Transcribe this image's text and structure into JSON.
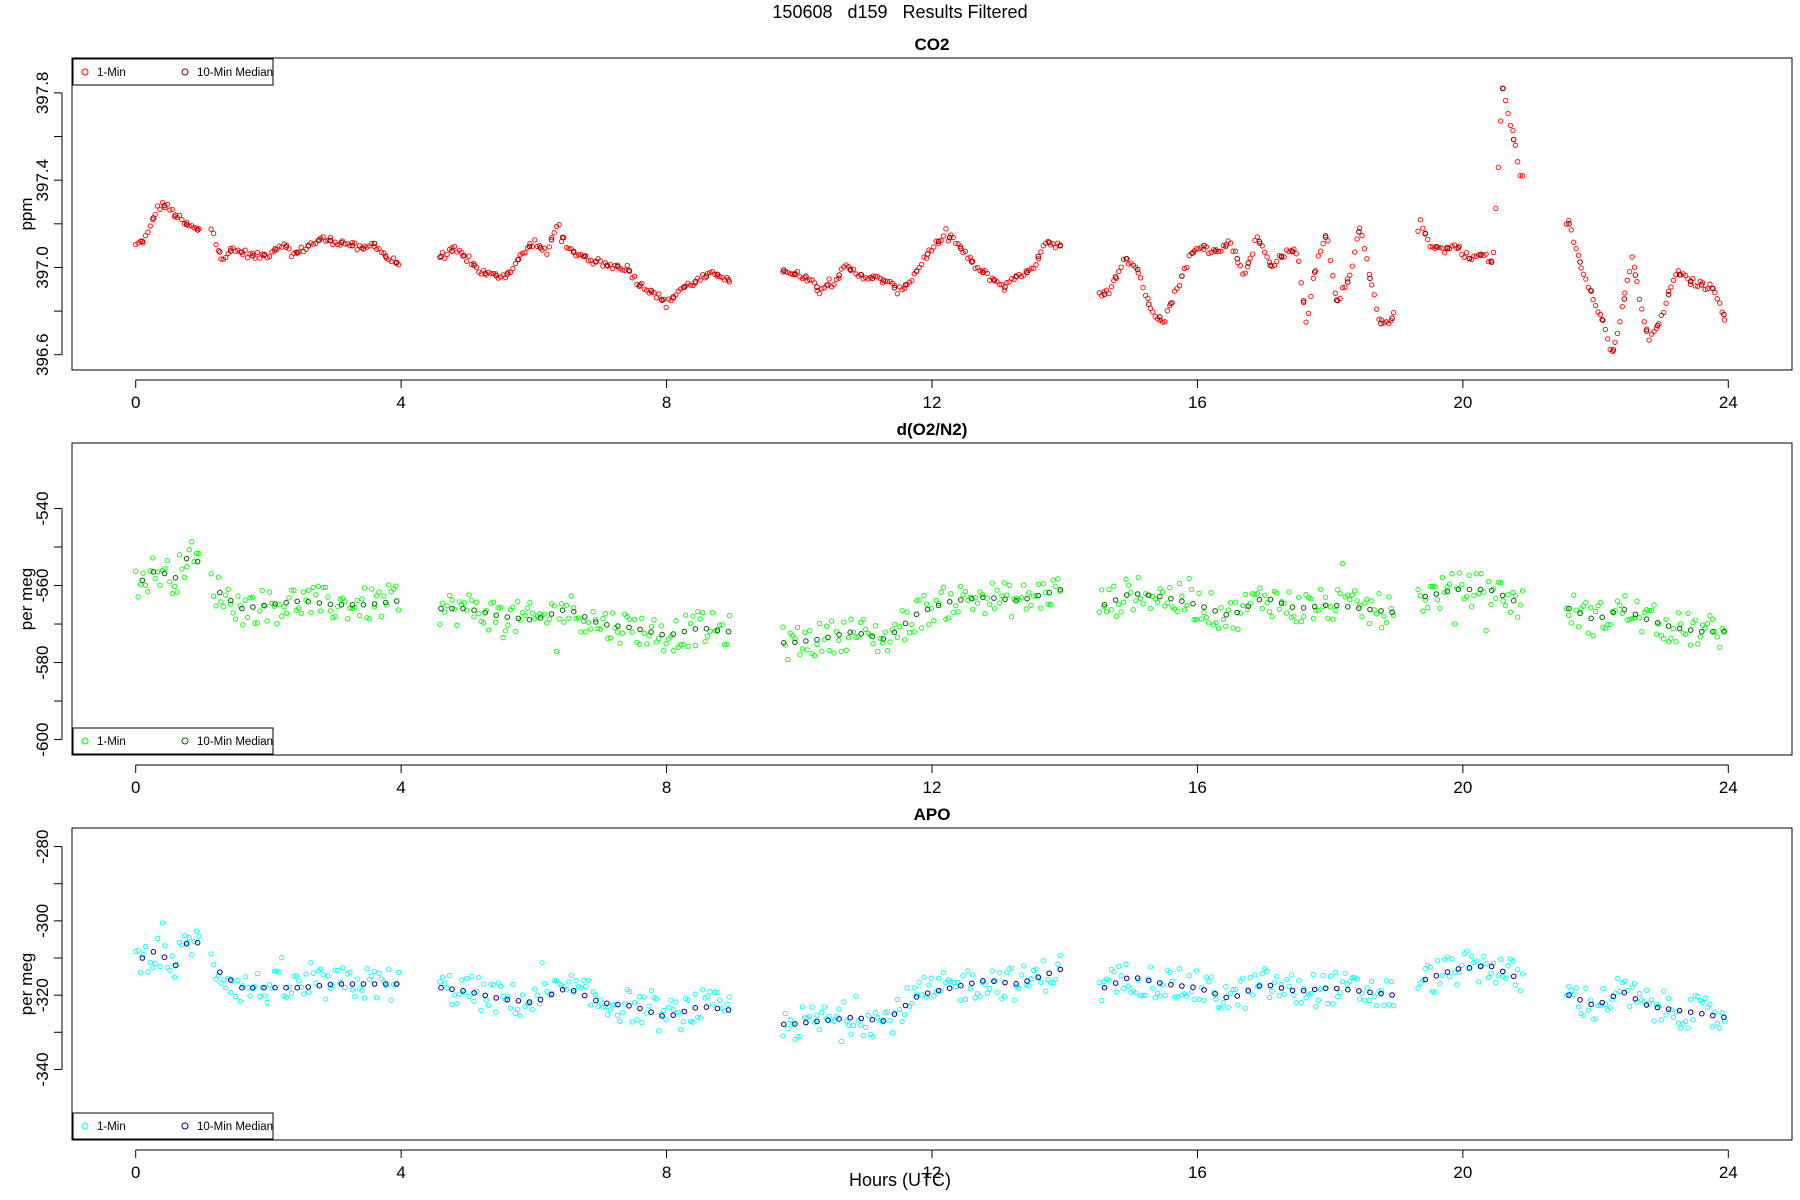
{
  "figure": {
    "title": "150608   d159   Results Filtered",
    "xlabel": "Hours (UTC)"
  },
  "chart_data": [
    {
      "type": "scatter",
      "title": "CO2",
      "ylabel": "ppm",
      "xlabel": "",
      "xlim": [
        -0.96,
        24.96
      ],
      "ylim": [
        396.53,
        397.96
      ],
      "xticks": [
        0,
        4,
        8,
        12,
        16,
        20,
        24
      ],
      "yticks": [
        396.6,
        397.0,
        397.4,
        397.8
      ],
      "ytick_labels": [
        "396.6",
        "397.0",
        "397.4",
        "397.8"
      ],
      "legend_position": "top-left",
      "grid": false,
      "series": [
        {
          "name": "1-Min",
          "color": "#ff0000",
          "anchors": [
            [
              0.0,
              397.1
            ],
            [
              0.1,
              397.12
            ],
            [
              0.2,
              397.16
            ],
            [
              0.3,
              397.26
            ],
            [
              0.4,
              397.29
            ],
            [
              0.5,
              397.27
            ],
            [
              0.6,
              397.24
            ],
            [
              0.7,
              397.21
            ],
            [
              0.8,
              397.19
            ],
            [
              0.95,
              397.17
            ],
            [
              1.15,
              397.18
            ],
            [
              1.3,
              397.04
            ],
            [
              1.45,
              397.08
            ],
            [
              1.6,
              397.07
            ],
            [
              1.8,
              397.05
            ],
            [
              2.0,
              397.06
            ],
            [
              2.2,
              397.11
            ],
            [
              2.4,
              397.06
            ],
            [
              2.6,
              397.1
            ],
            [
              2.8,
              397.13
            ],
            [
              3.0,
              397.12
            ],
            [
              3.2,
              397.11
            ],
            [
              3.4,
              397.08
            ],
            [
              3.6,
              397.11
            ],
            [
              3.8,
              397.04
            ],
            [
              3.95,
              397.02
            ],
            [
              4.6,
              397.05
            ],
            [
              4.8,
              397.08
            ],
            [
              5.0,
              397.04
            ],
            [
              5.2,
              396.98
            ],
            [
              5.4,
              396.96
            ],
            [
              5.6,
              396.97
            ],
            [
              5.8,
              397.05
            ],
            [
              6.0,
              397.12
            ],
            [
              6.2,
              397.06
            ],
            [
              6.35,
              397.21
            ],
            [
              6.5,
              397.08
            ],
            [
              6.7,
              397.06
            ],
            [
              6.9,
              397.03
            ],
            [
              7.1,
              397.01
            ],
            [
              7.4,
              397.0
            ],
            [
              7.6,
              396.92
            ],
            [
              7.8,
              396.89
            ],
            [
              8.0,
              396.83
            ],
            [
              8.2,
              396.9
            ],
            [
              8.4,
              396.93
            ],
            [
              8.6,
              396.96
            ],
            [
              8.8,
              396.97
            ],
            [
              8.95,
              396.94
            ],
            [
              9.75,
              396.99
            ],
            [
              9.9,
              396.97
            ],
            [
              10.1,
              396.96
            ],
            [
              10.3,
              396.9
            ],
            [
              10.5,
              396.93
            ],
            [
              10.7,
              397.0
            ],
            [
              10.9,
              396.97
            ],
            [
              11.1,
              396.95
            ],
            [
              11.3,
              396.94
            ],
            [
              11.5,
              396.89
            ],
            [
              11.7,
              396.95
            ],
            [
              11.9,
              397.05
            ],
            [
              12.1,
              397.12
            ],
            [
              12.3,
              397.14
            ],
            [
              12.5,
              397.06
            ],
            [
              12.7,
              396.99
            ],
            [
              12.9,
              396.95
            ],
            [
              13.1,
              396.91
            ],
            [
              13.3,
              396.97
            ],
            [
              13.5,
              396.98
            ],
            [
              13.7,
              397.12
            ],
            [
              13.95,
              397.1
            ],
            [
              14.55,
              396.86
            ],
            [
              14.7,
              396.91
            ],
            [
              14.9,
              397.05
            ],
            [
              15.1,
              396.99
            ],
            [
              15.3,
              396.8
            ],
            [
              15.5,
              396.76
            ],
            [
              15.7,
              396.91
            ],
            [
              15.9,
              397.06
            ],
            [
              16.1,
              397.1
            ],
            [
              16.3,
              397.07
            ],
            [
              16.5,
              397.12
            ],
            [
              16.7,
              396.96
            ],
            [
              16.9,
              397.14
            ],
            [
              17.1,
              397.01
            ],
            [
              17.3,
              397.06
            ],
            [
              17.5,
              397.08
            ],
            [
              17.65,
              396.73
            ],
            [
              17.8,
              397.05
            ],
            [
              17.95,
              397.15
            ],
            [
              18.1,
              396.85
            ],
            [
              18.3,
              396.95
            ],
            [
              18.45,
              397.19
            ],
            [
              18.6,
              396.95
            ],
            [
              18.75,
              396.74
            ],
            [
              18.95,
              396.77
            ],
            [
              19.35,
              397.21
            ],
            [
              19.5,
              397.11
            ],
            [
              19.7,
              397.08
            ],
            [
              19.9,
              397.1
            ],
            [
              20.1,
              397.04
            ],
            [
              20.3,
              397.06
            ],
            [
              20.45,
              397.02
            ],
            [
              20.6,
              397.82
            ],
            [
              20.75,
              397.62
            ],
            [
              20.85,
              397.42
            ],
            [
              21.6,
              397.2
            ],
            [
              21.8,
              396.99
            ],
            [
              21.95,
              396.88
            ],
            [
              22.1,
              396.76
            ],
            [
              22.25,
              396.6
            ],
            [
              22.4,
              396.8
            ],
            [
              22.55,
              397.05
            ],
            [
              22.65,
              396.88
            ],
            [
              22.8,
              396.66
            ],
            [
              23.0,
              396.77
            ],
            [
              23.2,
              396.98
            ],
            [
              23.4,
              396.94
            ],
            [
              23.6,
              396.92
            ],
            [
              23.8,
              396.9
            ],
            [
              23.95,
              396.77
            ]
          ]
        },
        {
          "name": "10-Min Median",
          "color": "#8b0000"
        }
      ]
    },
    {
      "type": "scatter",
      "title": "d(O2/N2)",
      "ylabel": "per meg",
      "xlabel": "",
      "xlim": [
        -0.96,
        24.96
      ],
      "ylim": [
        -604,
        -523
      ],
      "xticks": [
        0,
        4,
        8,
        12,
        16,
        20,
        24
      ],
      "yticks": [
        -600,
        -580,
        -560,
        -540
      ],
      "ytick_labels": [
        "-600",
        "-580",
        "-560",
        "-540"
      ],
      "legend_position": "bottom-left",
      "grid": false,
      "series": [
        {
          "name": "1-Min",
          "color": "#00ff00",
          "anchors": [
            [
              0.0,
              -560
            ],
            [
              0.3,
              -556
            ],
            [
              0.6,
              -558
            ],
            [
              0.8,
              -552
            ],
            [
              0.95,
              -554
            ],
            [
              1.2,
              -561
            ],
            [
              1.6,
              -566
            ],
            [
              2.0,
              -565
            ],
            [
              2.5,
              -564
            ],
            [
              3.0,
              -565
            ],
            [
              3.5,
              -565
            ],
            [
              3.95,
              -564
            ],
            [
              4.6,
              -566
            ],
            [
              5.0,
              -566
            ],
            [
              5.5,
              -568
            ],
            [
              6.0,
              -569
            ],
            [
              6.5,
              -566
            ],
            [
              7.0,
              -570
            ],
            [
              7.5,
              -571
            ],
            [
              8.0,
              -573
            ],
            [
              8.5,
              -571
            ],
            [
              8.95,
              -572
            ],
            [
              9.8,
              -575
            ],
            [
              10.3,
              -574
            ],
            [
              10.8,
              -572
            ],
            [
              11.3,
              -574
            ],
            [
              11.8,
              -567
            ],
            [
              12.3,
              -564
            ],
            [
              12.8,
              -563
            ],
            [
              13.3,
              -564
            ],
            [
              13.95,
              -561
            ],
            [
              14.6,
              -565
            ],
            [
              15.0,
              -562
            ],
            [
              15.5,
              -563
            ],
            [
              16.0,
              -565
            ],
            [
              16.5,
              -568
            ],
            [
              17.0,
              -563
            ],
            [
              17.5,
              -566
            ],
            [
              18.0,
              -565
            ],
            [
              18.5,
              -566
            ],
            [
              18.95,
              -567
            ],
            [
              19.4,
              -563
            ],
            [
              19.9,
              -561
            ],
            [
              20.4,
              -561
            ],
            [
              20.9,
              -565
            ],
            [
              21.6,
              -566
            ],
            [
              22.0,
              -569
            ],
            [
              22.4,
              -566
            ],
            [
              22.8,
              -569
            ],
            [
              23.2,
              -571
            ],
            [
              23.6,
              -572
            ],
            [
              23.95,
              -572
            ]
          ]
        },
        {
          "name": "10-Min Median",
          "color": "#006400"
        }
      ]
    },
    {
      "type": "scatter",
      "title": "APO",
      "ylabel": "per meg",
      "xlabel": "",
      "xlim": [
        -0.96,
        24.96
      ],
      "ylim": [
        -359,
        -275
      ],
      "xticks": [
        0,
        4,
        8,
        12,
        16,
        20,
        24
      ],
      "yticks": [
        -340,
        -320,
        -300,
        -280
      ],
      "ytick_labels": [
        "-340",
        "-320",
        "-300",
        "-280"
      ],
      "legend_position": "bottom-left",
      "grid": false,
      "series": [
        {
          "name": "1-Min",
          "color": "#00ffff",
          "anchors": [
            [
              0.0,
              -311
            ],
            [
              0.3,
              -308
            ],
            [
              0.6,
              -312
            ],
            [
              0.8,
              -305
            ],
            [
              0.95,
              -306
            ],
            [
              1.2,
              -313
            ],
            [
              1.6,
              -318
            ],
            [
              2.0,
              -318
            ],
            [
              2.5,
              -318
            ],
            [
              3.0,
              -317
            ],
            [
              3.5,
              -317
            ],
            [
              3.95,
              -317
            ],
            [
              4.6,
              -318
            ],
            [
              5.0,
              -319
            ],
            [
              5.5,
              -321
            ],
            [
              6.0,
              -322
            ],
            [
              6.5,
              -318
            ],
            [
              7.0,
              -322
            ],
            [
              7.5,
              -323
            ],
            [
              8.0,
              -326
            ],
            [
              8.5,
              -323
            ],
            [
              8.95,
              -324
            ],
            [
              9.8,
              -328
            ],
            [
              10.3,
              -327
            ],
            [
              10.8,
              -326
            ],
            [
              11.3,
              -327
            ],
            [
              11.8,
              -320
            ],
            [
              12.3,
              -318
            ],
            [
              12.8,
              -316
            ],
            [
              13.3,
              -317
            ],
            [
              13.95,
              -313
            ],
            [
              14.6,
              -318
            ],
            [
              15.0,
              -315
            ],
            [
              15.5,
              -317
            ],
            [
              16.0,
              -318
            ],
            [
              16.5,
              -321
            ],
            [
              17.0,
              -317
            ],
            [
              17.5,
              -319
            ],
            [
              18.0,
              -318
            ],
            [
              18.5,
              -319
            ],
            [
              18.95,
              -320
            ],
            [
              19.4,
              -316
            ],
            [
              19.9,
              -313
            ],
            [
              20.4,
              -312
            ],
            [
              20.9,
              -316
            ],
            [
              21.6,
              -320
            ],
            [
              22.0,
              -323
            ],
            [
              22.4,
              -319
            ],
            [
              22.8,
              -323
            ],
            [
              23.2,
              -324
            ],
            [
              23.6,
              -325
            ],
            [
              23.95,
              -326
            ]
          ]
        },
        {
          "name": "10-Min Median",
          "color": "#00008b"
        }
      ]
    }
  ]
}
